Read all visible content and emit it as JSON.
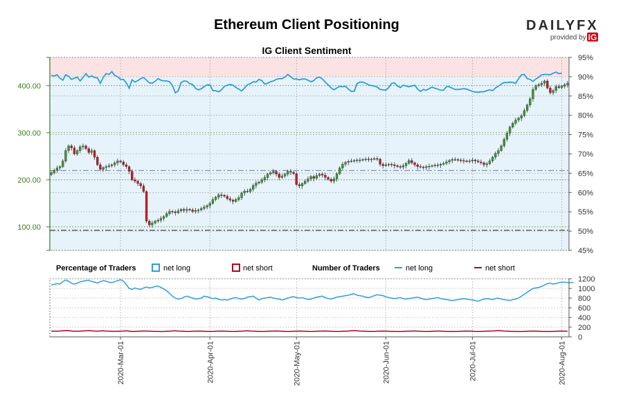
{
  "chart_data": {
    "type": "candlestick",
    "title": "Ethereum Client Positioning",
    "subtitle": "IG Client Sentiment",
    "price_axis": {
      "ticks": [
        "100.00",
        "200.00",
        "300.00",
        "400.00"
      ],
      "ylim": [
        50,
        460
      ]
    },
    "sentiment_axis": {
      "ticks": [
        "45%",
        "50%",
        "55%",
        "60%",
        "65%",
        "70%",
        "75%",
        "80%",
        "85%",
        "90%",
        "95%"
      ],
      "ylim": [
        45,
        95
      ]
    },
    "traders_axis": {
      "ticks": [
        "0",
        "200",
        "400",
        "600",
        "800",
        "1000",
        "1200"
      ],
      "ylim": [
        0,
        1200
      ]
    },
    "x_ticks": [
      "2020-Mar-01",
      "2020-Apr-01",
      "2020-May-01",
      "2020-Jun-01",
      "2020-Jul-01",
      "2020-Aug-01"
    ],
    "x_tick_days": [
      24,
      55,
      85,
      116,
      146,
      177
    ],
    "days": 180,
    "price_close": [
      215,
      220,
      225,
      228,
      240,
      262,
      272,
      268,
      255,
      262,
      270,
      272,
      266,
      258,
      262,
      248,
      232,
      222,
      226,
      228,
      230,
      232,
      236,
      240,
      238,
      232,
      228,
      218,
      200,
      197,
      192,
      187,
      175,
      112,
      104,
      108,
      112,
      114,
      118,
      122,
      128,
      133,
      132,
      130,
      134,
      137,
      135,
      137,
      136,
      133,
      135,
      136,
      139,
      142,
      145,
      150,
      158,
      163,
      168,
      167,
      165,
      160,
      157,
      154,
      158,
      162,
      172,
      176,
      175,
      180,
      188,
      193,
      195,
      200,
      205,
      212,
      215,
      218,
      212,
      205,
      208,
      212,
      218,
      216,
      213,
      190,
      187,
      192,
      197,
      202,
      207,
      203,
      209,
      212,
      210,
      205,
      201,
      197,
      202,
      213,
      225,
      233,
      237,
      239,
      240,
      241,
      242,
      242,
      243,
      244,
      243,
      244,
      245,
      244,
      233,
      230,
      232,
      233,
      232,
      230,
      228,
      227,
      230,
      235,
      241,
      236,
      232,
      228,
      227,
      226,
      228,
      229,
      230,
      231,
      231,
      233,
      235,
      238,
      241,
      243,
      243,
      242,
      241,
      240,
      239,
      240,
      242,
      240,
      238,
      236,
      232,
      234,
      240,
      248,
      256,
      262,
      272,
      286,
      299,
      312,
      320,
      327,
      331,
      336,
      347,
      359,
      372,
      392,
      400,
      402,
      405,
      410,
      395,
      385,
      390,
      398,
      396,
      399,
      402,
      405
    ],
    "long_pct": [
      90.3,
      90.2,
      90.5,
      89.6,
      89.1,
      90.5,
      90.1,
      89.3,
      89.6,
      89.9,
      88.9,
      89.8,
      90.8,
      89.9,
      90.2,
      89.8,
      89.7,
      88.3,
      89.8,
      90.8,
      90.6,
      91.3,
      90.3,
      90.0,
      89.3,
      89.3,
      88.4,
      87.0,
      89.2,
      88.6,
      89.0,
      89.5,
      89.8,
      89.1,
      88.4,
      88.3,
      88.8,
      89.5,
      89.1,
      88.9,
      88.9,
      88.7,
      87.7,
      85.8,
      86.3,
      88.5,
      88.9,
      88.8,
      88.2,
      88.0,
      87.0,
      86.6,
      86.9,
      87.4,
      87.9,
      87.9,
      86.4,
      86.4,
      86.1,
      86.6,
      87.5,
      87.8,
      88.0,
      87.8,
      87.2,
      86.8,
      86.3,
      87.1,
      87.9,
      88.2,
      88.7,
      88.6,
      89.3,
      89.0,
      88.1,
      88.3,
      88.7,
      88.9,
      89.3,
      89.5,
      89.5,
      89.9,
      90.6,
      90.0,
      89.4,
      89.4,
      89.2,
      89.4,
      89.4,
      89.1,
      88.7,
      89.0,
      89.7,
      89.9,
      89.4,
      88.6,
      87.9,
      87.1,
      86.6,
      87.1,
      87.5,
      87.4,
      87.5,
      86.8,
      86.2,
      86.2,
      88.2,
      88.6,
      88.6,
      88.3,
      87.9,
      87.7,
      87.6,
      87.3,
      86.7,
      86.6,
      86.5,
      87.2,
      88.3,
      88.4,
      87.6,
      87.2,
      87.8,
      87.6,
      87.4,
      87.6,
      87.8,
      86.8,
      86.2,
      86.7,
      86.5,
      86.9,
      87.3,
      87.0,
      86.8,
      86.5,
      86.5,
      87.4,
      87.4,
      87.0,
      86.7,
      86.7,
      86.8,
      86.9,
      86.8,
      86.5,
      86.2,
      86.0,
      86.0,
      86.1,
      86.1,
      86.4,
      86.6,
      86.4,
      87.1,
      87.5,
      88.1,
      88.5,
      88.5,
      88.6,
      88.5,
      88.3,
      89.5,
      90.5,
      90.6,
      89.5,
      89.3,
      88.8,
      89.4,
      89.9,
      90.5,
      90.6,
      90.6,
      90.5,
      90.9,
      91.2,
      90.8,
      90.9
    ],
    "long_count": [
      1070,
      1085,
      1100,
      1090,
      1140,
      1175,
      1150,
      1105,
      1090,
      1110,
      1135,
      1150,
      1160,
      1170,
      1145,
      1130,
      1110,
      1140,
      1160,
      1150,
      1130,
      1120,
      1140,
      1160,
      1180,
      1150,
      1080,
      1000,
      980,
      1010,
      990,
      980,
      1010,
      1030,
      1010,
      1020,
      1040,
      1050,
      1020,
      990,
      950,
      900,
      840,
      800,
      780,
      790,
      820,
      840,
      820,
      800,
      780,
      790,
      800,
      840,
      830,
      810,
      790,
      800,
      780,
      760,
      770,
      760,
      780,
      800,
      810,
      790,
      780,
      790,
      820,
      830,
      840,
      800,
      760,
      790,
      800,
      810,
      820,
      800,
      790,
      780,
      760,
      780,
      800,
      820,
      830,
      810,
      800,
      810,
      790,
      770,
      780,
      800,
      820,
      830,
      840,
      810,
      790,
      780,
      800,
      820,
      830,
      840,
      850,
      860,
      880,
      890,
      860,
      850,
      840,
      820,
      810,
      830,
      850,
      870,
      860,
      850,
      830,
      810,
      800,
      790,
      800,
      810,
      790,
      780,
      790,
      800,
      810,
      820,
      800,
      780,
      770,
      780,
      790,
      800,
      810,
      790,
      780,
      770,
      760,
      750,
      760,
      770,
      780,
      790,
      780,
      770,
      760,
      750,
      740,
      760,
      780,
      790,
      780,
      770,
      790,
      800,
      780,
      770,
      760,
      750,
      770,
      780,
      800,
      840,
      880,
      920,
      960,
      1000,
      1010,
      1020,
      1040,
      1070,
      1100,
      1110,
      1090,
      1100,
      1120,
      1130,
      1130,
      1120,
      1120,
      1125
    ],
    "short_count": [
      115,
      118,
      117,
      120,
      125,
      128,
      130,
      120,
      118,
      115,
      118,
      122,
      125,
      128,
      124,
      120,
      118,
      122,
      125,
      120,
      118,
      115,
      112,
      115,
      118,
      120,
      125,
      118,
      110,
      112,
      115,
      118,
      122,
      120,
      118,
      115,
      112,
      110,
      108,
      112,
      115,
      118,
      122,
      125,
      120,
      118,
      115,
      112,
      110,
      115,
      118,
      120,
      118,
      115,
      112,
      110,
      112,
      115,
      118,
      120,
      118,
      115,
      112,
      110,
      112,
      115,
      118,
      122,
      125,
      120,
      118,
      115,
      112,
      110,
      112,
      115,
      118,
      120,
      122,
      118,
      115,
      112,
      110,
      112,
      115,
      118,
      120,
      118,
      115,
      112,
      110,
      112,
      115,
      118,
      120,
      122,
      118,
      115,
      112,
      110,
      112,
      115,
      118,
      120,
      125,
      128,
      125,
      120,
      118,
      115,
      112,
      110,
      112,
      115,
      118,
      120,
      118,
      115,
      112,
      110,
      108,
      110,
      112,
      115,
      118,
      120,
      122,
      118,
      115,
      112,
      110,
      112,
      115,
      118,
      120,
      118,
      115,
      112,
      110,
      108,
      110,
      112,
      115,
      118,
      120,
      118,
      115,
      112,
      110,
      112,
      115,
      118,
      120,
      122,
      125,
      128,
      125,
      120,
      118,
      115,
      112,
      110,
      108,
      110,
      112,
      115,
      118,
      120,
      118,
      115,
      112,
      110,
      108,
      110,
      112,
      115,
      118,
      120,
      118,
      115
    ]
  },
  "legend": {
    "percentage_header": "Percentage of Traders",
    "number_header": "Number of Traders",
    "net_long": "net long",
    "net_short": "net short"
  },
  "brand": {
    "logo_text": "DAILYFX",
    "provided_by": "provided by",
    "ig": "IG"
  },
  "colors": {
    "up": "#3c9a2c",
    "down": "#c91a20",
    "long": "#2d9ed9",
    "short": "#b00020",
    "long_zone": "#e7f3fa",
    "short_zone": "#fbe3e3",
    "price_axis": "#3a7d1e"
  }
}
